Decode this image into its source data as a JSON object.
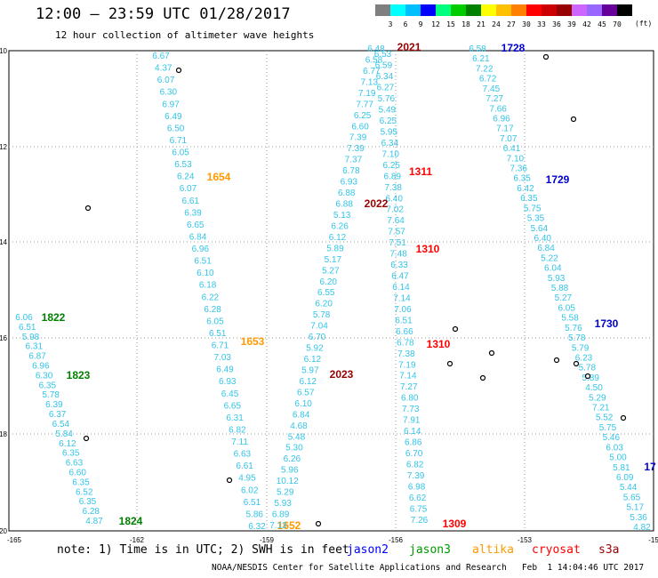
{
  "header": {
    "title": "12:00 – 23:59 UTC 01/28/2017",
    "subtitle": "12 hour collection of altimeter wave heights"
  },
  "colorbar": {
    "colors": [
      "#7f7f7f",
      "#00ffff",
      "#00bfff",
      "#0000ff",
      "#00ff7f",
      "#00cc00",
      "#008000",
      "#ffff00",
      "#ffc000",
      "#ff8000",
      "#ff0000",
      "#cc0000",
      "#990000",
      "#cc66ff",
      "#9966ff",
      "#660099",
      "#000000"
    ],
    "labels": [
      "3",
      "6",
      "9",
      "12",
      "15",
      "18",
      "21",
      "24",
      "27",
      "30",
      "33",
      "36",
      "39",
      "42",
      "45",
      "70"
    ],
    "unit": "(ft)"
  },
  "notes": {
    "prefix": "note: 1) Time is in UTC; 2) SWH is in feet",
    "satellites": [
      {
        "name": "jason2",
        "color": "#0000ff"
      },
      {
        "name": "jason3",
        "color": "#009900"
      },
      {
        "name": "altika",
        "color": "#ff9900"
      },
      {
        "name": "cryosat",
        "color": "#ff0000"
      },
      {
        "name": "s3a",
        "color": "#990000"
      }
    ]
  },
  "credit": "NOAA/NESDIS Center for Satellite Applications and Research   Feb  1 14:04:46 UTC 2017",
  "map": {
    "lon_ticks": [
      "-165",
      "-162",
      "-159",
      "-156",
      "-153",
      "-15"
    ],
    "lat_ticks": [
      "-10",
      "-12",
      "-14",
      "-16",
      "-18",
      "-20"
    ],
    "tracks": [
      {
        "satellite": "jason3",
        "label": "1822",
        "label_color": "#008000",
        "values": [
          "6.06",
          "6.51",
          "5.98",
          "6.31",
          "6.87",
          "6.96",
          "6.30",
          "6.35",
          "5.78",
          "6.39",
          "6.37",
          "6.54",
          "5.84",
          "6.12",
          "6.35",
          "6.63",
          "6.60",
          "6.35",
          "6.52",
          "6.35",
          "6.28",
          "4.87"
        ]
      },
      {
        "satellite": "jason3",
        "label": "1823",
        "label_color": "#008000"
      },
      {
        "satellite": "jason3",
        "label": "1824",
        "label_color": "#008000"
      },
      {
        "satellite": "altika",
        "label": "1654",
        "label_color": "#ff9900",
        "values": [
          "6.67",
          "4.37",
          "6.07",
          "6.30",
          "6.97",
          "6.49",
          "6.50",
          "6.71",
          "6.05",
          "6.53",
          "6.24",
          "6.07",
          "6.61",
          "6.39",
          "6.65",
          "6.84",
          "6.96",
          "6.51",
          "6.10",
          "6.18",
          "6.22",
          "6.28",
          "6.05",
          "6.51",
          "6.71",
          "7.03",
          "6.49",
          "6.93",
          "6.45",
          "6.65",
          "6.31",
          "6.82",
          "7.11",
          "6.63",
          "6.61",
          "4.95",
          "6.02",
          "6.51",
          "5.86",
          "6.32"
        ]
      },
      {
        "satellite": "altika",
        "label": "1653",
        "label_color": "#ff9900"
      },
      {
        "satellite": "altika",
        "label": "1652",
        "label_color": "#ff9900"
      },
      {
        "satellite": "s3a",
        "label": "2021",
        "label_color": "#990000",
        "values": [
          "6.48",
          "6.53",
          "6.58",
          "6.59",
          "6.77",
          "6.34",
          "7.13",
          "6.27",
          "7.19",
          "5.76",
          "7.77",
          "5.49",
          "6.25",
          "6.25",
          "6.60",
          "5.95",
          "7.39",
          "6.34",
          "7.39",
          "7.10",
          "7.37",
          "6.25",
          "6.78",
          "6.89",
          "6.93",
          "7.38",
          "6.88",
          "6.40",
          "6.88",
          "7.02",
          "5.13",
          "7.64",
          "6.26",
          "7.57",
          "6.12",
          "7.51",
          "5.89",
          "7.48",
          "5.17",
          "6.33",
          "5.27",
          "6.47",
          "6.20",
          "6.14",
          "6.55",
          "7.14",
          "6.20",
          "7.06",
          "5.78",
          "6.51",
          "7.04",
          "6.66",
          "6.70",
          "6.78",
          "5.92",
          "7.38",
          "6.12",
          "7.19",
          "5.97",
          "7.14",
          "6.12",
          "7.27",
          "6.57",
          "6.80",
          "6.10",
          "7.73",
          "6.84",
          "7.91",
          "4.68",
          "6.14",
          "5.48",
          "6.86",
          "5.30",
          "6.70",
          "6.26",
          "6.82",
          "5.96",
          "7.39",
          "10.12",
          "6.98",
          "5.29",
          "6.62",
          "5.93",
          "6.75",
          "6.89",
          "7.26",
          "7.13"
        ]
      },
      {
        "satellite": "s3a",
        "label": "2022",
        "label_color": "#990000"
      },
      {
        "satellite": "s3a",
        "label": "2023",
        "label_color": "#990000"
      },
      {
        "satellite": "cryosat",
        "label": "1311",
        "label_color": "#ff0000"
      },
      {
        "satellite": "cryosat",
        "label": "1310",
        "label_color": "#ff0000"
      },
      {
        "satellite": "cryosat",
        "label": "1310",
        "label_color": "#ff0000"
      },
      {
        "satellite": "cryosat",
        "label": "1309",
        "label_color": "#ff0000"
      },
      {
        "satellite": "jason2",
        "label": "1728",
        "label_color": "#0000cc",
        "values": [
          "6.58",
          "6.21",
          "7.22",
          "6.72",
          "7.45",
          "7.27",
          "7.66",
          "6.96",
          "7.17",
          "7.07",
          "6.41",
          "7.10",
          "7.36",
          "6.35",
          "6.42",
          "6.35",
          "5.75",
          "5.35",
          "5.64",
          "6.40",
          "6.84",
          "5.22",
          "6.04",
          "5.93",
          "5.88",
          "5.27",
          "6.05",
          "5.58",
          "5.76",
          "5.78",
          "5.79",
          "6.23",
          "5.78",
          "5.89",
          "4.50",
          "5.29",
          "7.21",
          "5.52",
          "5.75",
          "5.46",
          "6.03",
          "5.00",
          "5.81",
          "6.09",
          "5.44",
          "5.65",
          "5.17",
          "5.36",
          "4.82"
        ]
      },
      {
        "satellite": "jason2",
        "label": "1729",
        "label_color": "#0000cc"
      },
      {
        "satellite": "jason2",
        "label": "1730",
        "label_color": "#0000cc"
      },
      {
        "satellite": "jason2",
        "label": "17",
        "label_color": "#0000cc"
      }
    ]
  }
}
